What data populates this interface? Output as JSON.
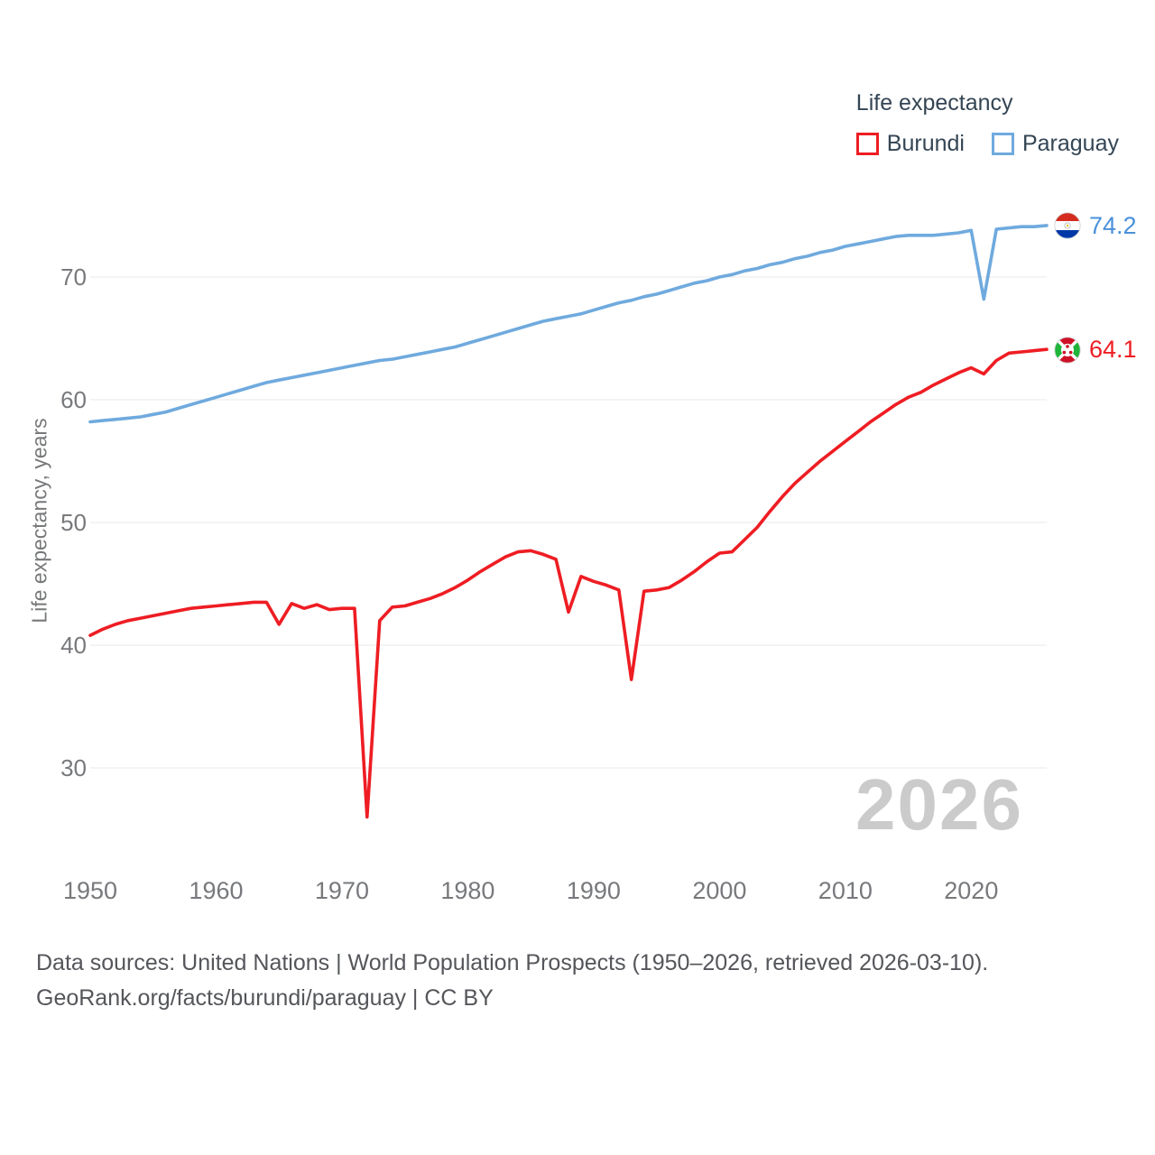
{
  "legend": {
    "title": "Life expectancy",
    "series": [
      {
        "label": "Burundi",
        "color": "#ee1d23"
      },
      {
        "label": "Paraguay",
        "color": "#6faade"
      }
    ]
  },
  "ylabel": "Life expectancy, years",
  "end_labels": {
    "burundi": "64.1",
    "paraguay": "74.2"
  },
  "watermark": "2026",
  "footer": {
    "line1": "Data sources: United Nations | World Population Prospects (1950–2026, retrieved 2026-03-10).",
    "line2": "GeoRank.org/facts/burundi/paraguay | CC BY"
  },
  "chart_data": {
    "type": "line",
    "title": "Life expectancy",
    "xlabel": "",
    "ylabel": "Life expectancy, years",
    "x_start": 1950,
    "x_end": 2026,
    "xticks": [
      1950,
      1960,
      1970,
      1980,
      1990,
      2000,
      2010,
      2020
    ],
    "yticks": [
      30,
      40,
      50,
      60,
      70
    ],
    "xlim": [
      1950,
      2026
    ],
    "ylim": [
      24,
      76
    ],
    "grid": true,
    "legend_position": "top-right",
    "series": [
      {
        "name": "Burundi",
        "color": "#ee1d23",
        "end_value": 64.1,
        "values": [
          40.8,
          41.3,
          41.7,
          42.0,
          42.2,
          42.4,
          42.6,
          42.8,
          43.0,
          43.1,
          43.2,
          43.3,
          43.4,
          43.5,
          43.5,
          41.7,
          43.4,
          43.0,
          43.3,
          42.9,
          43.0,
          43.0,
          26.0,
          42.0,
          43.1,
          43.2,
          43.5,
          43.8,
          44.2,
          44.7,
          45.3,
          46.0,
          46.6,
          47.2,
          47.6,
          47.7,
          47.4,
          47.0,
          42.7,
          45.6,
          45.2,
          44.9,
          44.5,
          37.2,
          44.4,
          44.5,
          44.7,
          45.3,
          46.0,
          46.8,
          47.5,
          47.6,
          48.6,
          49.6,
          50.9,
          52.1,
          53.2,
          54.1,
          55.0,
          55.8,
          56.6,
          57.4,
          58.2,
          58.9,
          59.6,
          60.2,
          60.6,
          61.2,
          61.7,
          62.2,
          62.6,
          62.1,
          63.2,
          63.8,
          63.9,
          64.0,
          64.1
        ]
      },
      {
        "name": "Paraguay",
        "color": "#6faade",
        "end_value": 74.2,
        "values": [
          58.2,
          58.3,
          58.4,
          58.5,
          58.6,
          58.8,
          59.0,
          59.3,
          59.6,
          59.9,
          60.2,
          60.5,
          60.8,
          61.1,
          61.4,
          61.6,
          61.8,
          62.0,
          62.2,
          62.4,
          62.6,
          62.8,
          63.0,
          63.2,
          63.3,
          63.5,
          63.7,
          63.9,
          64.1,
          64.3,
          64.6,
          64.9,
          65.2,
          65.5,
          65.8,
          66.1,
          66.4,
          66.6,
          66.8,
          67.0,
          67.3,
          67.6,
          67.9,
          68.1,
          68.4,
          68.6,
          68.9,
          69.2,
          69.5,
          69.7,
          70.0,
          70.2,
          70.5,
          70.7,
          71.0,
          71.2,
          71.5,
          71.7,
          72.0,
          72.2,
          72.5,
          72.7,
          72.9,
          73.1,
          73.3,
          73.4,
          73.4,
          73.4,
          73.5,
          73.6,
          73.8,
          68.2,
          73.9,
          74.0,
          74.1,
          74.1,
          74.2
        ]
      }
    ]
  }
}
